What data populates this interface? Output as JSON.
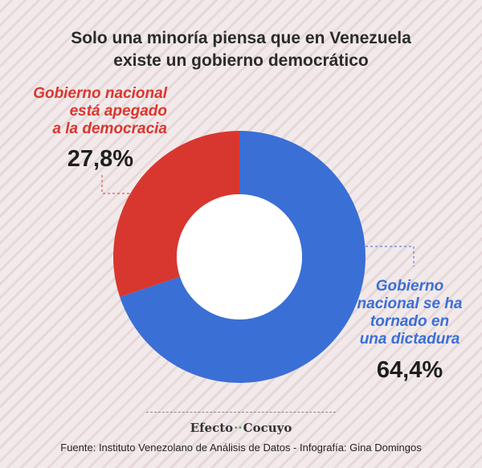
{
  "title": {
    "line1": "Solo una minoría piensa que en Venezuela",
    "line2": "existe un gobierno democrático"
  },
  "chart_data": {
    "type": "pie",
    "style": "donut",
    "title": "Solo una minoría piensa que en Venezuela existe un gobierno democrático",
    "slices": [
      {
        "label_lines": [
          "Gobierno nacional",
          "está apegado",
          "a la democracia"
        ],
        "value": 27.8,
        "value_label": "27,8%",
        "color": "#d8372f"
      },
      {
        "label_lines": [
          "Gobierno",
          "nacional se ha",
          "tornado en",
          "una dictadura"
        ],
        "value": 64.4,
        "value_label": "64,4%",
        "color": "#3a6fd6"
      }
    ]
  },
  "footer": {
    "logo_left": "Efecto",
    "logo_dots": "··",
    "logo_right": "Cocuyo",
    "source": "Fuente: Instituto Venezolano de Análisis de Datos - Infografía: Gina Domingos"
  }
}
